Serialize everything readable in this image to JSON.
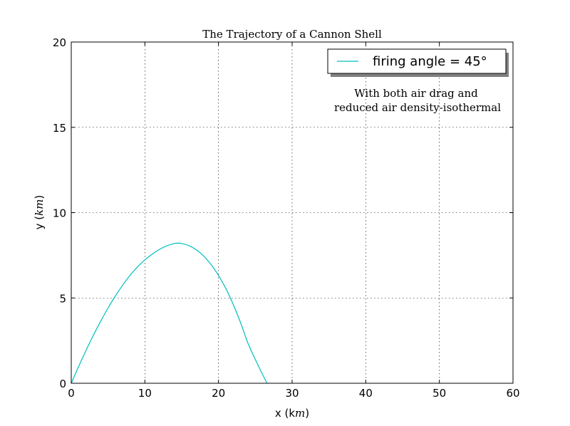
{
  "chart_data": {
    "type": "line",
    "title": "The Trajectory of a Cannon Shell",
    "xlabel": "x (k",
    "xlabel_unit": "m",
    "xlabel_close": ")",
    "ylabel": "y (",
    "ylabel_unit": "km",
    "ylabel_close": ")",
    "xlim": [
      0,
      60
    ],
    "ylim": [
      0,
      20
    ],
    "xticks": [
      0,
      10,
      20,
      30,
      40,
      50,
      60
    ],
    "yticks": [
      0,
      5,
      10,
      15,
      20
    ],
    "xtick_labels": [
      "0",
      "10",
      "20",
      "30",
      "40",
      "50",
      "60"
    ],
    "ytick_labels": [
      "0",
      "5",
      "10",
      "15",
      "20"
    ],
    "grid": true,
    "legend_position": "top-right",
    "annotation": [
      "With both air drag and",
      "reduced air density-isothermal"
    ],
    "series": [
      {
        "name": "firing angle = 45°",
        "color": "#00bfbf",
        "x": [
          0,
          1,
          2,
          3,
          4,
          5,
          6,
          7,
          8,
          9,
          10,
          11,
          12,
          13,
          14,
          14.5,
          15,
          16,
          17,
          18,
          19,
          20,
          21,
          22,
          23,
          24,
          25,
          26,
          26.6
        ],
        "y": [
          0,
          0.98,
          1.92,
          2.81,
          3.64,
          4.41,
          5.12,
          5.76,
          6.33,
          6.82,
          7.23,
          7.57,
          7.85,
          8.06,
          8.19,
          8.21,
          8.19,
          8.06,
          7.82,
          7.45,
          6.95,
          6.32,
          5.55,
          4.62,
          3.55,
          2.35,
          1.4,
          0.5,
          0
        ]
      }
    ]
  }
}
